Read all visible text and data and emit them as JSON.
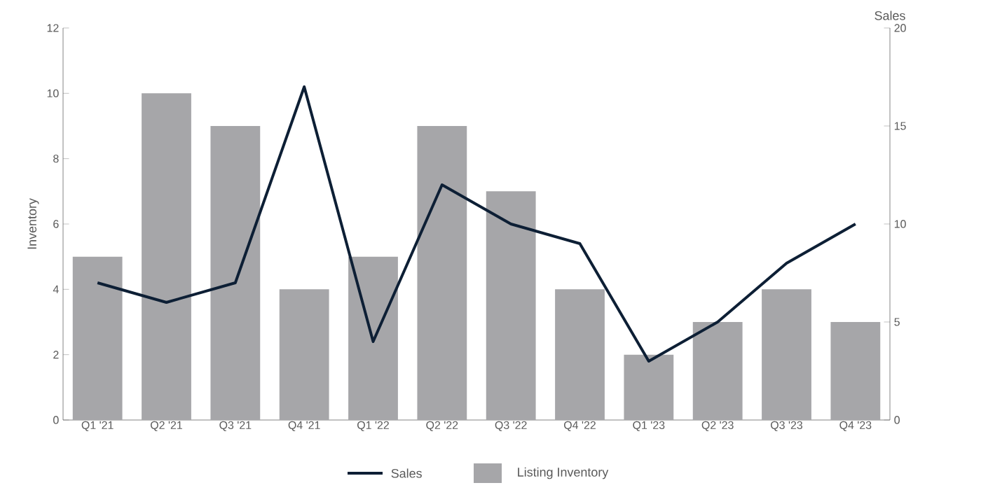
{
  "chart_data": {
    "type": "bar",
    "categories": [
      "Q1 '21",
      "Q2 '21",
      "Q3 '21",
      "Q4 '21",
      "Q1 '22",
      "Q2 '22",
      "Q3 '22",
      "Q4 '22",
      "Q1 '23",
      "Q2 '23",
      "Q3 '23",
      "Q4 '23"
    ],
    "series": [
      {
        "name": "Sales",
        "type": "line",
        "axis": "y2",
        "color": "#0d1f35",
        "values": [
          7,
          6,
          7,
          17,
          4,
          12,
          10,
          9,
          3,
          5,
          8,
          10
        ]
      },
      {
        "name": "Listing Inventory",
        "color": "#a6a6a9",
        "values": [
          5,
          10,
          9,
          4,
          5,
          9,
          7,
          4,
          2,
          3,
          4,
          3
        ]
      }
    ],
    "ylabel": "Inventory",
    "y2label": "Sales",
    "ylim": [
      0,
      12
    ],
    "yticks": [
      0,
      2,
      4,
      6,
      8,
      10,
      12
    ],
    "y2lim": [
      0,
      20
    ],
    "y2ticks": [
      0,
      5,
      10,
      15,
      20
    ],
    "legend": "bottom",
    "marker": "none",
    "line_style": "solid"
  }
}
